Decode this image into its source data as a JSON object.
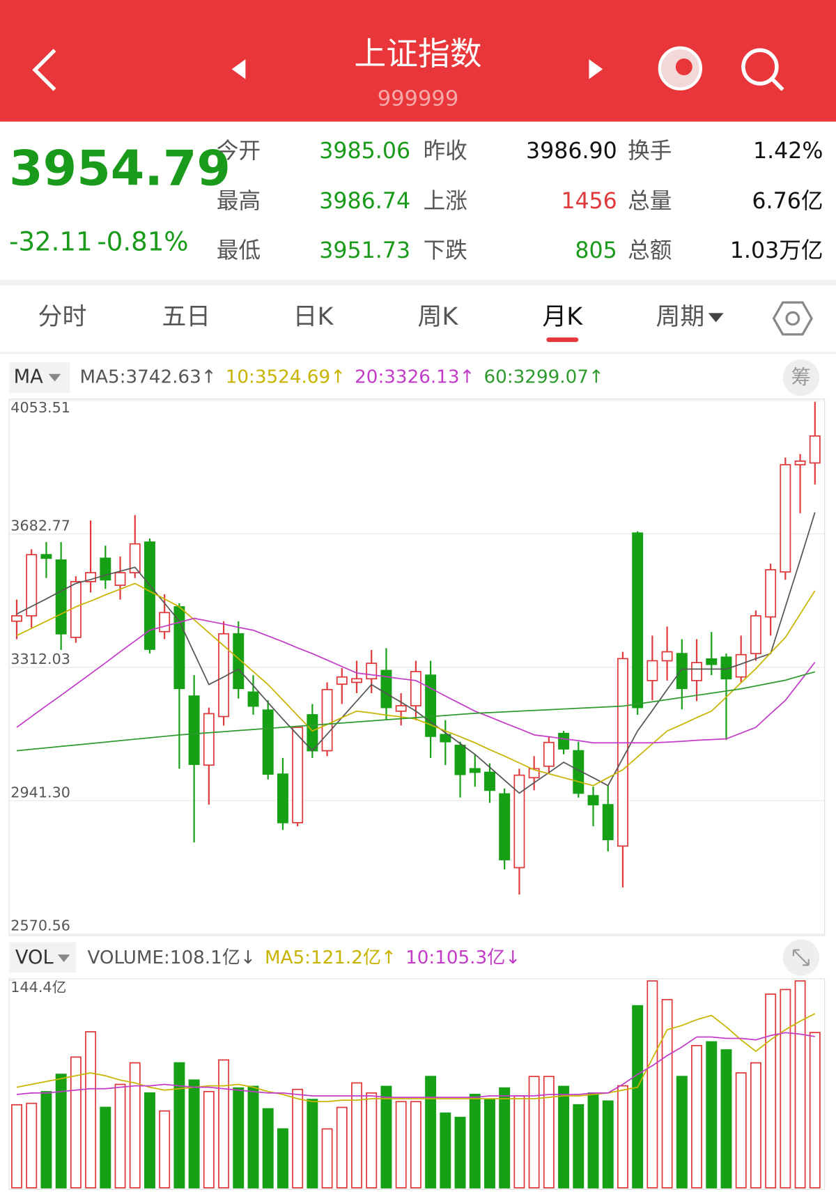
{
  "header": {
    "title": "上证指数",
    "code": "999999"
  },
  "quote": {
    "price": "3954.79",
    "change": "-32.11",
    "change_pct": "-0.81%",
    "color": "#1a9a1a",
    "stats": [
      {
        "label": "今开",
        "value": "3985.06",
        "color": "#1a9a1a"
      },
      {
        "label": "昨收",
        "value": "3986.90",
        "color": "#111111"
      },
      {
        "label": "换手",
        "value": "1.42%",
        "color": "#111111"
      },
      {
        "label": "最高",
        "value": "3986.74",
        "color": "#1a9a1a"
      },
      {
        "label": "上涨",
        "value": "1456",
        "color": "#e0393c"
      },
      {
        "label": "总量",
        "value": "6.76亿",
        "color": "#111111"
      },
      {
        "label": "最低",
        "value": "3951.73",
        "color": "#1a9a1a"
      },
      {
        "label": "下跌",
        "value": "805",
        "color": "#1a9a1a"
      },
      {
        "label": "总额",
        "value": "1.03万亿",
        "color": "#111111"
      }
    ]
  },
  "tabs": {
    "items": [
      "分时",
      "五日",
      "日K",
      "周K",
      "月K",
      "周期"
    ],
    "active": 4
  },
  "chip_button": "筹",
  "chart_data": [
    {
      "type": "candlestick",
      "indicator": "MA",
      "up_color": "#e0393c",
      "down_color": "#16a016",
      "ylim": [
        2570.56,
        4053.51
      ],
      "yticks": [
        4053.51,
        3682.77,
        3312.03,
        {
          "value": 2941.3,
          "label": "2941.30"
        },
        2570.56
      ],
      "grid": true,
      "open": [
        3440,
        3455,
        3625,
        3610,
        3395,
        3550,
        3615,
        3540,
        3575,
        3660,
        3411,
        3480,
        3232,
        3040,
        3175,
        3405,
        3243,
        3193,
        3015,
        2880,
        3180,
        3080,
        3265,
        3270,
        3280,
        3303,
        3190,
        3205,
        3290,
        3125,
        3095,
        3030,
        3020,
        2960,
        2755,
        3005,
        3037,
        3128,
        3080,
        2955,
        2930,
        2815,
        3685,
        3275,
        3330,
        3350,
        3275,
        3335,
        3340,
        3285,
        3350,
        3452,
        3577,
        3875,
        3880
      ],
      "high": [
        3500,
        3640,
        3660,
        3660,
        3565,
        3720,
        3650,
        3620,
        3735,
        3670,
        3515,
        3490,
        3290,
        3200,
        3440,
        3440,
        3290,
        3220,
        3060,
        3150,
        3210,
        3270,
        3310,
        3330,
        3360,
        3365,
        3240,
        3330,
        3330,
        3165,
        3105,
        3070,
        3045,
        2975,
        3030,
        3065,
        3120,
        3135,
        3105,
        2980,
        2985,
        3355,
        3690,
        3400,
        3425,
        3390,
        3390,
        3410,
        3350,
        3400,
        3470,
        3600,
        3895,
        3905,
        4050
      ],
      "low": [
        3390,
        3420,
        3560,
        3360,
        3380,
        3520,
        3530,
        3500,
        3560,
        3350,
        3390,
        3030,
        2825,
        2930,
        3150,
        3225,
        3180,
        3000,
        2860,
        2870,
        3060,
        3065,
        3210,
        3240,
        3240,
        3165,
        3150,
        3165,
        3060,
        3040,
        2950,
        2980,
        2935,
        2750,
        2680,
        2970,
        3015,
        3070,
        2950,
        2870,
        2800,
        2700,
        3180,
        3220,
        3275,
        3195,
        3218,
        3290,
        3110,
        3270,
        3330,
        3400,
        3555,
        3740,
        3820
      ],
      "close": [
        3455,
        3625,
        3615,
        3405,
        3550,
        3575,
        3555,
        3575,
        3655,
        3362,
        3464,
        3253,
        3042,
        3183,
        3405,
        3253,
        3204,
        3015,
        2880,
        3145,
        3080,
        3250,
        3285,
        3280,
        3323,
        3200,
        3205,
        3300,
        3120,
        3105,
        3014,
        3020,
        2970,
        2777,
        3012,
        3030,
        3103,
        3085,
        2962,
        2930,
        2833,
        3336,
        3200,
        3330,
        3355,
        3253,
        3325,
        3320,
        3280,
        3347,
        3455,
        3583,
        3875,
        3885,
        3954.79
      ],
      "series": [
        {
          "name": "MA5",
          "legend": "MA5:3742.63↑",
          "color": "#555555",
          "values": [
            3460,
            3481,
            3502,
            3524,
            3545,
            3556,
            3568,
            3579,
            3590,
            3540,
            3490,
            3440,
            3352,
            3264,
            3285,
            3307,
            3261,
            3214,
            3168,
            3124,
            3080,
            3126,
            3172,
            3218,
            3264,
            3239,
            3215,
            3190,
            3160,
            3130,
            3100,
            3070,
            3034,
            2998,
            2962,
            2991,
            3019,
            3048,
            3026,
            3005,
            2983,
            3059,
            3135,
            3192,
            3250,
            3307,
            3307,
            3307,
            3307,
            3321,
            3336,
            3350,
            3480,
            3610,
            3742.63
          ]
        },
        {
          "name": "10",
          "legend": "10:3524.69↑",
          "color": "#c8b400",
          "values": [
            3400,
            3420,
            3440,
            3460,
            3480,
            3496,
            3513,
            3529,
            3545,
            3523,
            3502,
            3480,
            3444,
            3408,
            3372,
            3336,
            3300,
            3264,
            3221,
            3178,
            3135,
            3153,
            3172,
            3190,
            3185,
            3179,
            3174,
            3168,
            3152,
            3135,
            3119,
            3102,
            3083,
            3065,
            3046,
            3027,
            3016,
            3005,
            2994,
            2983,
            3005,
            3027,
            3063,
            3099,
            3135,
            3153,
            3172,
            3190,
            3229,
            3269,
            3308,
            3352,
            3395,
            3460,
            3524.69
          ]
        },
        {
          "name": "20",
          "legend": "20:3326.13↑",
          "color": "#c23cc8",
          "values": [
            3145,
            3175,
            3205,
            3234,
            3264,
            3294,
            3324,
            3355,
            3385,
            3415,
            3426,
            3437,
            3448,
            3440,
            3432,
            3423,
            3415,
            3399,
            3383,
            3366,
            3350,
            3332,
            3314,
            3296,
            3291,
            3286,
            3280,
            3275,
            3254,
            3232,
            3211,
            3190,
            3174,
            3157,
            3141,
            3124,
            3119,
            3113,
            3108,
            3102,
            3102,
            3102,
            3102,
            3102,
            3104,
            3106,
            3109,
            3111,
            3113,
            3129,
            3145,
            3183,
            3220,
            3273,
            3326.13
          ]
        },
        {
          "name": "60",
          "legend": "60:3299.07↑",
          "color": "#2e9a2e",
          "values": [
            3080,
            3084,
            3088,
            3092,
            3096,
            3100,
            3104,
            3108,
            3112,
            3116,
            3120,
            3124,
            3127,
            3130,
            3133,
            3136,
            3139,
            3142,
            3145,
            3148,
            3151,
            3154,
            3157,
            3160,
            3163,
            3166,
            3169,
            3172,
            3175,
            3178,
            3181,
            3184,
            3186,
            3188,
            3190,
            3192,
            3194,
            3196,
            3198,
            3200,
            3202,
            3204,
            3210,
            3216,
            3222,
            3228,
            3234,
            3240,
            3246,
            3252,
            3260,
            3268,
            3276,
            3288,
            3299.07
          ]
        }
      ]
    },
    {
      "type": "volume",
      "indicator": "VOL",
      "legend": "VOLUME:108.1亿↓",
      "ylim": [
        0,
        144.4
      ],
      "yticks": [
        {
          "value": 144.4,
          "label": "144.4亿"
        }
      ],
      "values": [
        57.8,
        58.8,
        66.9,
        79,
        91,
        108.6,
        56,
        72,
        87,
        66,
        53.5,
        87,
        75,
        67,
        89,
        69.5,
        70.6,
        55,
        41,
        68.5,
        61.5,
        41,
        56,
        73,
        66,
        70.6,
        60,
        60,
        77.5,
        52,
        49,
        65,
        61.5,
        69.5,
        64,
        77.5,
        77.5,
        70.6,
        57.8,
        66,
        60.4,
        71,
        126.7,
        144,
        131,
        77.5,
        99,
        101.6,
        96,
        80,
        87,
        134.8,
        138,
        144,
        108.1
      ],
      "series": [
        {
          "name": "MA5",
          "legend": "MA5:121.2亿↑",
          "color": "#c8b400",
          "values": [
            70,
            72,
            74,
            76,
            78,
            80,
            78,
            75,
            73,
            70,
            68,
            69,
            70,
            71,
            71,
            72,
            70,
            67,
            65,
            62,
            60,
            60,
            61,
            61,
            62,
            62,
            62,
            62,
            62,
            62,
            62,
            62,
            62,
            62,
            62,
            62,
            63,
            64,
            64,
            65,
            66,
            68,
            70,
            90,
            110,
            113,
            117,
            120,
            112,
            103,
            95,
            103,
            110,
            116,
            121.2
          ]
        },
        {
          "name": "10",
          "legend": "10:105.3亿↓",
          "color": "#c23cc8",
          "values": [
            65,
            66,
            66,
            67,
            68,
            69,
            69,
            70,
            71,
            71,
            72,
            71,
            70,
            70,
            69,
            68,
            67,
            66,
            66,
            65,
            64,
            64,
            64,
            64,
            64,
            63,
            63,
            63,
            63,
            63,
            63,
            63,
            64,
            64,
            64,
            64,
            65,
            65,
            65,
            66,
            66,
            72,
            79,
            85,
            92,
            98,
            105,
            105,
            104,
            104,
            103,
            106,
            108,
            107,
            105.3
          ]
        }
      ]
    }
  ]
}
